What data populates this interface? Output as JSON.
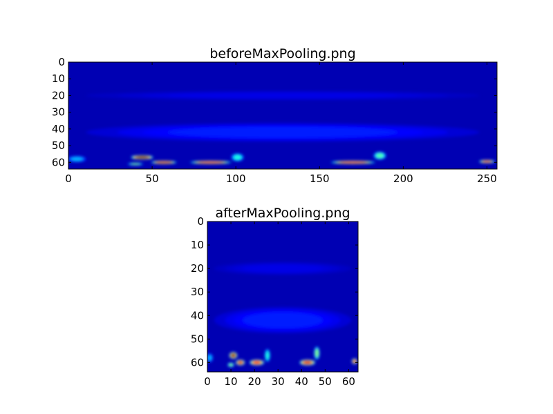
{
  "chart_data": [
    {
      "type": "heatmap",
      "title": "beforeMaxPooling.png",
      "colormap": "jet",
      "background_value": 0.05,
      "xlim": [
        0,
        256
      ],
      "ylim": [
        64,
        0
      ],
      "xticks": [
        "0",
        "50",
        "100",
        "150",
        "200",
        "250"
      ],
      "yticks": [
        "0",
        "10",
        "20",
        "30",
        "40",
        "50",
        "60"
      ],
      "hotspots": [
        {
          "x": 5,
          "y": 58,
          "w": 12,
          "h": 4,
          "v": 0.3
        },
        {
          "x": 44,
          "y": 57,
          "w": 14,
          "h": 2.5,
          "v": 1.0
        },
        {
          "x": 40,
          "y": 61,
          "w": 10,
          "h": 1.5,
          "v": 0.5
        },
        {
          "x": 57,
          "y": 60,
          "w": 16,
          "h": 2,
          "v": 0.9
        },
        {
          "x": 85,
          "y": 60,
          "w": 26,
          "h": 2,
          "v": 0.85
        },
        {
          "x": 101,
          "y": 57,
          "w": 8,
          "h": 5,
          "v": 0.4
        },
        {
          "x": 170,
          "y": 60,
          "w": 28,
          "h": 2,
          "v": 0.85
        },
        {
          "x": 186,
          "y": 56,
          "w": 8,
          "h": 5,
          "v": 0.45
        },
        {
          "x": 250,
          "y": 59.5,
          "w": 10,
          "h": 2,
          "v": 0.8
        },
        {
          "x": 128,
          "y": 42,
          "w": 250,
          "h": 12,
          "v": 0.15
        },
        {
          "x": 128,
          "y": 20,
          "w": 250,
          "h": 6,
          "v": 0.1
        }
      ]
    },
    {
      "type": "heatmap",
      "title": "afterMaxPooling.png",
      "colormap": "jet",
      "background_value": 0.05,
      "xlim": [
        0,
        64
      ],
      "ylim": [
        64,
        0
      ],
      "xticks": [
        "0",
        "10",
        "20",
        "30",
        "40",
        "50",
        "60"
      ],
      "yticks": [
        "0",
        "10",
        "20",
        "30",
        "40",
        "50",
        "60"
      ],
      "hotspots": [
        {
          "x": 1,
          "y": 58,
          "w": 3,
          "h": 4,
          "v": 0.3
        },
        {
          "x": 11,
          "y": 57,
          "w": 3.5,
          "h": 3,
          "v": 1.0
        },
        {
          "x": 10,
          "y": 61,
          "w": 3,
          "h": 2,
          "v": 0.5
        },
        {
          "x": 14,
          "y": 60,
          "w": 4,
          "h": 2.5,
          "v": 0.9
        },
        {
          "x": 21,
          "y": 60,
          "w": 6.5,
          "h": 2.5,
          "v": 0.85
        },
        {
          "x": 25.5,
          "y": 57,
          "w": 2.5,
          "h": 6,
          "v": 0.4
        },
        {
          "x": 42.5,
          "y": 60,
          "w": 7,
          "h": 2.5,
          "v": 0.9
        },
        {
          "x": 46.5,
          "y": 56,
          "w": 2.5,
          "h": 6,
          "v": 0.5
        },
        {
          "x": 62.5,
          "y": 59.5,
          "w": 2.5,
          "h": 2.5,
          "v": 0.8
        },
        {
          "x": 32,
          "y": 42,
          "w": 62,
          "h": 12,
          "v": 0.15
        },
        {
          "x": 32,
          "y": 20,
          "w": 62,
          "h": 6,
          "v": 0.1
        }
      ]
    }
  ]
}
